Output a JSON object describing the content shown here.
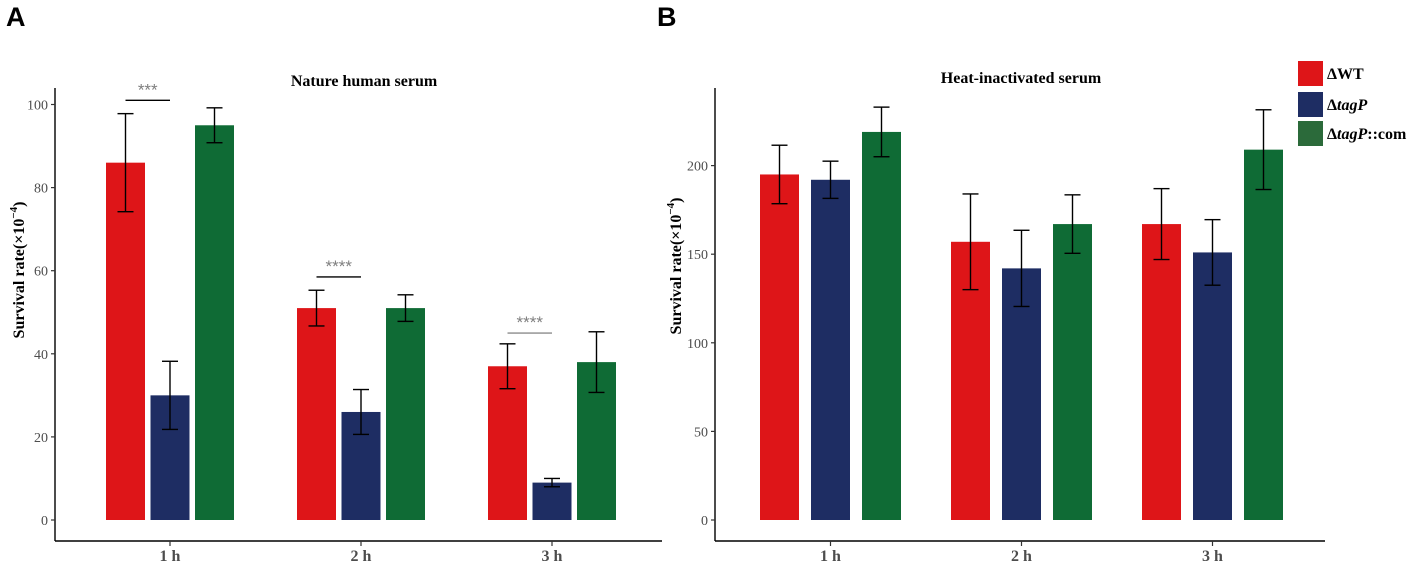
{
  "legend": {
    "items": [
      {
        "prefix": "Δ",
        "main": "WT",
        "suffix": "",
        "italic": false,
        "color": "#DE1518"
      },
      {
        "prefix": "Δ",
        "main": "tagP",
        "suffix": "",
        "italic": true,
        "color": "#1E2D63"
      },
      {
        "prefix": "Δ",
        "main": "tagP",
        "suffix": "::com",
        "italic": true,
        "color": "#2B6A3A"
      }
    ]
  },
  "chart_data": [
    {
      "panel_label": "A",
      "type": "bar",
      "title": "Nature human serum",
      "ylabel_text": "Survival rate(×10",
      "ylabel_exp": "−4",
      "ylabel_close": ")",
      "ylim": [
        0,
        100
      ],
      "yticks": [
        "0",
        "20",
        "40",
        "60",
        "80",
        "100"
      ],
      "categories": [
        "1 h",
        "2 h",
        "3 h"
      ],
      "series": [
        {
          "name": "ΔWT",
          "color": "#DE1518",
          "values": [
            86,
            51,
            37
          ],
          "errors": [
            11.8,
            4.3,
            5.4
          ]
        },
        {
          "name": "ΔtagP",
          "color": "#1E2D63",
          "values": [
            30,
            26,
            9
          ],
          "errors": [
            8.2,
            5.4,
            1.0
          ]
        },
        {
          "name": "ΔtagP::com",
          "color": "#0F6B35",
          "values": [
            95,
            51,
            38
          ],
          "errors": [
            4.2,
            3.2,
            7.3
          ]
        }
      ],
      "significance": [
        {
          "label": "***",
          "category": 0,
          "from": 0,
          "to": 1,
          "y": 101,
          "color": "#000000"
        },
        {
          "label": "****",
          "category": 1,
          "from": 0,
          "to": 1,
          "y": 58.5,
          "color": "#000000"
        },
        {
          "label": "****",
          "category": 2,
          "from": 0,
          "to": 1,
          "y": 45,
          "color": "#8c8c8c"
        }
      ]
    },
    {
      "panel_label": "B",
      "type": "bar",
      "title": "Heat-inactivated serum",
      "ylabel_text": "Survival rate(×10",
      "ylabel_exp": "−4",
      "ylabel_close": ")",
      "ylim": [
        0,
        240
      ],
      "yticks": [
        "0",
        "50",
        "100",
        "150",
        "200"
      ],
      "categories": [
        "1 h",
        "2 h",
        "3 h"
      ],
      "series": [
        {
          "name": "ΔWT",
          "color": "#DE1518",
          "values": [
            195,
            157,
            167
          ],
          "errors": [
            16.5,
            27,
            20
          ]
        },
        {
          "name": "ΔtagP",
          "color": "#1E2D63",
          "values": [
            192,
            142,
            151
          ],
          "errors": [
            10.5,
            21.5,
            18.5
          ]
        },
        {
          "name": "ΔtagP::com",
          "color": "#0F6B35",
          "values": [
            219,
            167,
            209
          ],
          "errors": [
            14,
            16.5,
            22.5
          ]
        }
      ],
      "significance": []
    }
  ]
}
